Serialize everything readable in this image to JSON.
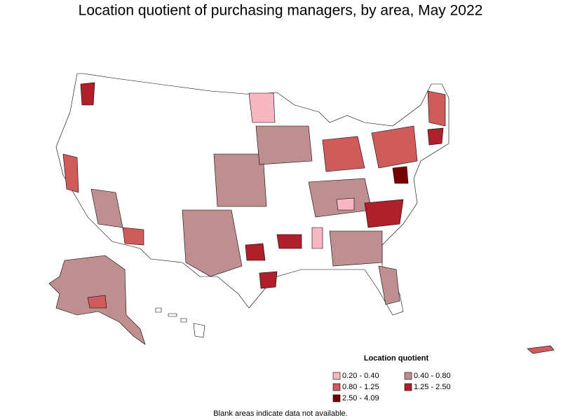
{
  "title": "Location quotient of purchasing managers, by area, May 2022",
  "legend": {
    "title": "Location quotient",
    "items": [
      {
        "label": "0.20 - 0.40",
        "color": "#f7b8c4"
      },
      {
        "label": "0.40 - 0.80",
        "color": "#bf8f8f"
      },
      {
        "label": "0.80 - 1.25",
        "color": "#cf5b5b"
      },
      {
        "label": "1.25 - 2.50",
        "color": "#b0202a"
      },
      {
        "label": "2.50 - 4.09",
        "color": "#780000"
      }
    ]
  },
  "note": "Blank areas indicate data not available."
}
